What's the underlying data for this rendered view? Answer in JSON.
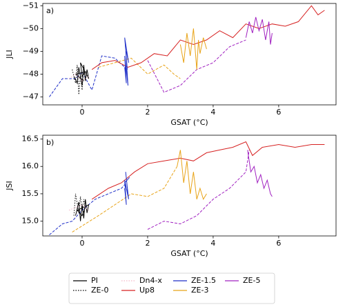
{
  "chart_data": [
    {
      "type": "line",
      "annotation": "a)",
      "xlabel": "GSAT (°C)",
      "ylabel": "JLI",
      "xlim": [
        -1.2,
        7.75
      ],
      "xticks": [
        0,
        2,
        4,
        6
      ],
      "ylim": [
        -46.65,
        -51.1
      ],
      "yticks": [
        {
          "value": -47,
          "label": "−47"
        },
        {
          "value": -48,
          "label": "−48"
        },
        {
          "value": -49,
          "label": "−49"
        },
        {
          "value": -50,
          "label": "−50"
        },
        {
          "value": -51,
          "label": "−51"
        }
      ],
      "series": [
        {
          "name": "PI",
          "color": "#000000",
          "style": "solid",
          "x": [
            -0.25,
            -0.15,
            -0.1,
            0,
            0.05,
            0.1,
            0.15,
            0.2,
            -0.05,
            0,
            0.1,
            -0.2,
            0.05
          ],
          "values": [
            -47.9,
            -47.6,
            -48.3,
            -47.5,
            -48.4,
            -47.7,
            -48.2,
            -47.8,
            -48.5,
            -47.9,
            -48.1,
            -48.0,
            -47.7
          ]
        },
        {
          "name": "ZE-0",
          "color": "#000000",
          "style": "dotted",
          "x": [
            -0.3,
            -0.2,
            -0.15,
            -0.1,
            -0.05,
            0,
            0.05,
            0.1
          ],
          "values": [
            -48.2,
            -47.6,
            -48.4,
            -47.1,
            -48.0,
            -47.3,
            -48.3,
            -47.8
          ]
        },
        {
          "name": "Dn4-x",
          "color": "#f4b6c8",
          "style": "dotted",
          "x": [
            -0.4,
            -0.2,
            0,
            0.2
          ],
          "values": [
            -47.8,
            -48.0,
            -47.7,
            -47.9
          ]
        },
        {
          "name": "Up8",
          "color": "#d62020",
          "style": "solid",
          "x": [
            0.3,
            0.6,
            1.0,
            1.4,
            1.8,
            2.2,
            2.6,
            3.0,
            3.4,
            3.8,
            4.2,
            4.6,
            5.0,
            5.4,
            5.8,
            6.2,
            6.6,
            7.0,
            7.2,
            7.4
          ],
          "values": [
            -48.2,
            -48.5,
            -48.6,
            -48.3,
            -48.5,
            -48.9,
            -48.8,
            -49.5,
            -49.3,
            -49.5,
            -49.9,
            -49.6,
            -50.2,
            -50.0,
            -50.2,
            -50.1,
            -50.3,
            -51.0,
            -50.6,
            -50.8
          ]
        },
        {
          "name": "ZE-1.5",
          "color": "#1f2fc8",
          "style": "solid",
          "x": [
            1.3,
            1.35,
            1.3,
            1.4,
            1.33,
            1.38,
            1.3,
            1.42,
            1.35
          ],
          "values": [
            -48.3,
            -47.6,
            -48.8,
            -47.5,
            -49.1,
            -48.2,
            -49.6,
            -48.5,
            -49.0
          ]
        },
        {
          "name": "ZE-3",
          "color": "#e8a317",
          "style": "solid",
          "x": [
            3.0,
            3.1,
            3.2,
            3.3,
            3.4,
            3.5,
            3.55,
            3.6,
            3.7,
            3.8
          ],
          "values": [
            -49.3,
            -48.5,
            -49.8,
            -48.8,
            -50.0,
            -48.2,
            -49.5,
            -48.9,
            -49.6,
            -49.1
          ]
        },
        {
          "name": "ZE-5",
          "color": "#a020c0",
          "style": "solid",
          "x": [
            5.0,
            5.1,
            5.2,
            5.3,
            5.4,
            5.5,
            5.6,
            5.7,
            5.75,
            5.8
          ],
          "values": [
            -49.6,
            -50.3,
            -49.8,
            -50.5,
            -49.9,
            -50.4,
            -49.5,
            -50.3,
            -49.3,
            -49.8
          ]
        },
        {
          "color": "#1f2fc8",
          "style": "dashed",
          "x": [
            -1.0,
            -0.6,
            -0.2,
            0,
            0.3,
            0.6,
            1.0,
            1.3
          ],
          "values": [
            -47.0,
            -47.8,
            -47.8,
            -48.1,
            -47.3,
            -48.8,
            -48.7,
            -48.3
          ]
        },
        {
          "color": "#e8a317",
          "style": "dashed",
          "x": [
            0.5,
            1.0,
            1.5,
            2.0,
            2.5,
            2.8,
            3.0
          ],
          "values": [
            -48.3,
            -48.5,
            -48.7,
            -48.0,
            -48.4,
            -48.0,
            -47.8
          ]
        },
        {
          "color": "#a020c0",
          "style": "dashed",
          "x": [
            2.0,
            2.5,
            3.0,
            3.5,
            4.0,
            4.5,
            5.0
          ],
          "values": [
            -48.6,
            -47.2,
            -47.5,
            -48.2,
            -48.5,
            -49.2,
            -49.5
          ]
        }
      ]
    },
    {
      "type": "line",
      "annotation": "b)",
      "xlabel": "GSAT (°C)",
      "ylabel": "JSI",
      "xlim": [
        -1.2,
        7.75
      ],
      "xticks": [
        0,
        2,
        4,
        6
      ],
      "ylim": [
        14.73,
        16.57
      ],
      "yticks": [
        {
          "value": 15,
          "label": "15.0"
        },
        15.5,
        {
          "value": 16,
          "label": "16.0"
        },
        16.5
      ],
      "series": [
        {
          "name": "PI",
          "color": "#000000",
          "style": "solid",
          "x": [
            -0.2,
            -0.1,
            -0.05,
            0,
            0.05,
            0.1,
            0.15,
            0.2,
            -0.15,
            0,
            0.1
          ],
          "values": [
            15.1,
            15.35,
            15.0,
            15.3,
            15.05,
            15.4,
            15.15,
            15.3,
            15.2,
            15.1,
            15.25
          ]
        },
        {
          "name": "ZE-0",
          "color": "#000000",
          "style": "dotted",
          "x": [
            -0.25,
            -0.2,
            -0.1,
            -0.05,
            0,
            0.05,
            0.1
          ],
          "values": [
            15.1,
            15.5,
            15.15,
            15.45,
            15.2,
            15.4,
            15.25
          ]
        },
        {
          "name": "Dn4-x",
          "color": "#f4b6c8",
          "style": "dotted",
          "x": [
            -0.4,
            -0.2,
            0,
            0.2
          ],
          "values": [
            15.2,
            15.25,
            15.3,
            15.2
          ]
        },
        {
          "name": "Up8",
          "color": "#d62020",
          "style": "solid",
          "x": [
            0.3,
            0.8,
            1.2,
            1.6,
            2.0,
            2.5,
            3.0,
            3.4,
            3.8,
            4.2,
            4.6,
            5.0,
            5.2,
            5.5,
            6.0,
            6.5,
            7.0,
            7.4
          ],
          "values": [
            15.4,
            15.6,
            15.7,
            15.9,
            16.05,
            16.1,
            16.15,
            16.1,
            16.25,
            16.3,
            16.35,
            16.45,
            16.2,
            16.35,
            16.4,
            16.35,
            16.4,
            16.4
          ]
        },
        {
          "name": "ZE-1.5",
          "color": "#1f2fc8",
          "style": "solid",
          "x": [
            1.3,
            1.35,
            1.3,
            1.42,
            1.33,
            1.4,
            1.3,
            1.45
          ],
          "values": [
            15.6,
            15.3,
            15.75,
            15.4,
            15.9,
            15.5,
            15.7,
            15.8
          ]
        },
        {
          "name": "ZE-3",
          "color": "#e8a317",
          "style": "solid",
          "x": [
            2.9,
            3.0,
            3.1,
            3.2,
            3.3,
            3.4,
            3.5,
            3.6,
            3.7,
            3.8
          ],
          "values": [
            16.0,
            16.3,
            15.7,
            16.1,
            15.5,
            15.9,
            15.4,
            15.6,
            15.4,
            15.5
          ]
        },
        {
          "name": "ZE-5",
          "color": "#a020c0",
          "style": "solid",
          "x": [
            5.05,
            5.15,
            5.25,
            5.35,
            5.45,
            5.55,
            5.65,
            5.75,
            5.8
          ],
          "values": [
            16.3,
            15.9,
            16.0,
            15.7,
            15.85,
            15.6,
            15.75,
            15.5,
            15.45
          ]
        },
        {
          "color": "#1f2fc8",
          "style": "dashed",
          "x": [
            -1.0,
            -0.6,
            -0.3,
            0,
            0.4,
            0.8,
            1.2,
            1.35
          ],
          "values": [
            14.75,
            14.95,
            15.0,
            15.2,
            15.4,
            15.5,
            15.6,
            15.7
          ]
        },
        {
          "color": "#e8a317",
          "style": "dashed",
          "x": [
            -0.3,
            0.5,
            1.0,
            1.5,
            2.0,
            2.5,
            2.9
          ],
          "values": [
            14.8,
            15.1,
            15.3,
            15.5,
            15.45,
            15.6,
            16.0
          ]
        },
        {
          "color": "#a020c0",
          "style": "dashed",
          "x": [
            2.0,
            2.5,
            3.0,
            3.5,
            4.0,
            4.5,
            5.0,
            5.1
          ],
          "values": [
            14.85,
            15.0,
            14.95,
            15.1,
            15.4,
            15.6,
            15.9,
            16.3
          ]
        }
      ]
    }
  ]
}
